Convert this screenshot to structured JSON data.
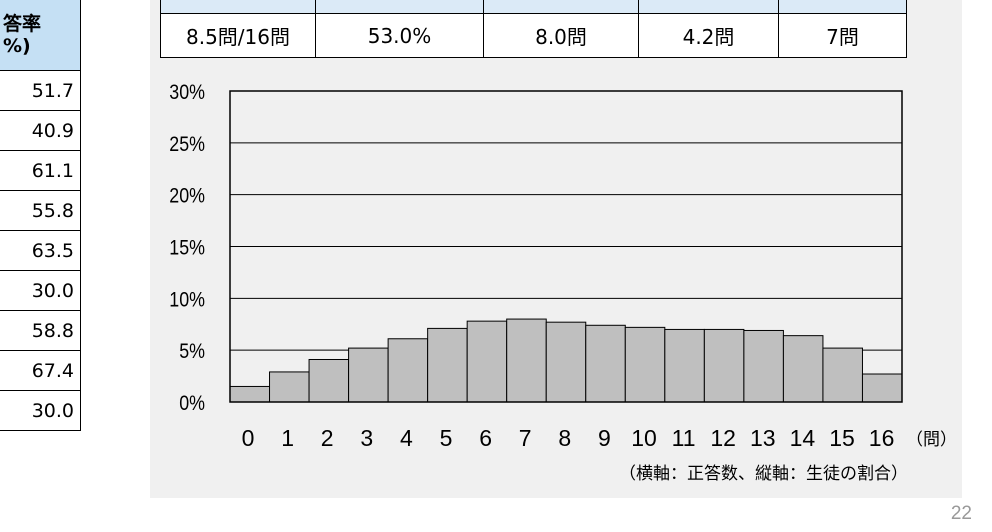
{
  "left_table": {
    "header_lines": [
      "答率",
      "%)"
    ],
    "values": [
      "51.7",
      "40.9",
      "61.1",
      "55.8",
      "63.5",
      "30.0",
      "58.8",
      "67.4",
      "30.0"
    ]
  },
  "summary_table": {
    "values": [
      "8.5問/16問",
      "53.0%",
      "8.0問",
      "4.2問",
      "7問"
    ]
  },
  "chart_data": {
    "type": "bar",
    "categories": [
      "0",
      "1",
      "2",
      "3",
      "4",
      "5",
      "6",
      "7",
      "8",
      "9",
      "10",
      "11",
      "12",
      "13",
      "14",
      "15",
      "16"
    ],
    "values": [
      1.5,
      2.9,
      4.1,
      5.2,
      6.1,
      7.1,
      7.8,
      8.0,
      7.7,
      7.4,
      7.2,
      7.0,
      7.0,
      6.9,
      6.4,
      5.2,
      2.7
    ],
    "y_ticks": [
      "0%",
      "5%",
      "10%",
      "15%",
      "20%",
      "25%",
      "30%"
    ],
    "ylim": [
      0,
      30
    ],
    "grid": true,
    "x_unit": "（問）",
    "axis_note": "（横軸：正答数、縦軸：生徒の割合）",
    "bar_color": "#bfbfbf",
    "bar_stroke": "#000000"
  },
  "page_number": "22"
}
